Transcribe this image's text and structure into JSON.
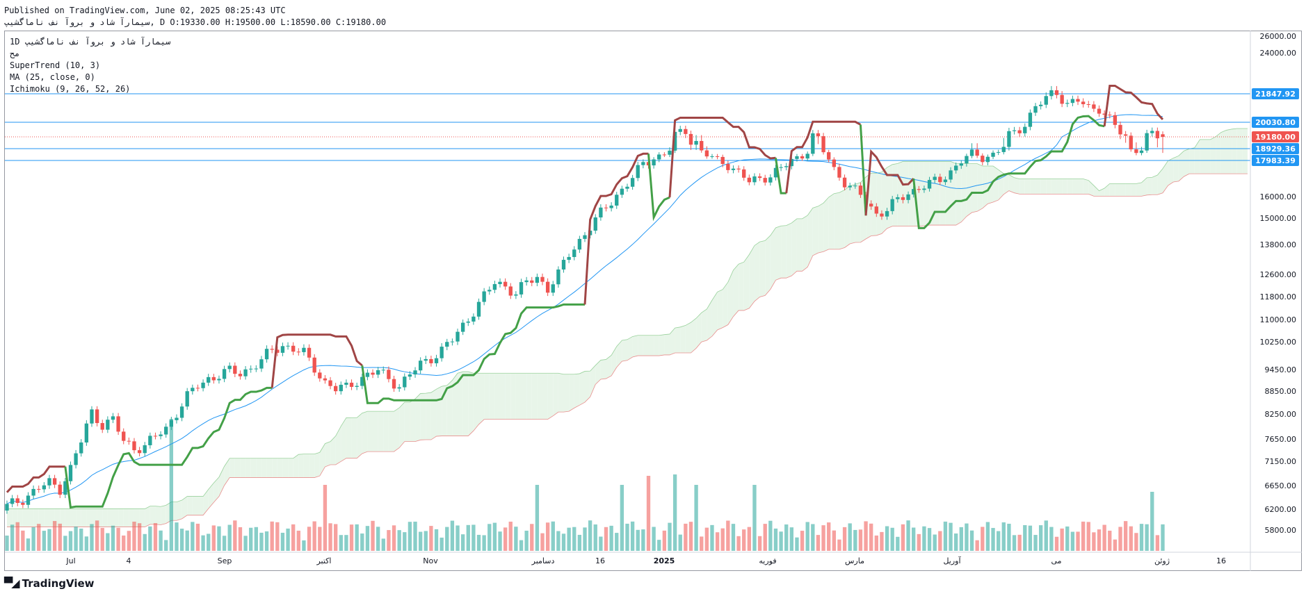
{
  "header": {
    "published": "Published on TradingView.com, June 02, 2025 08:25:43 UTC",
    "ticker": "سیمارآ شاد و بروآ نف ناماگشیپ, D O:19330.00 H:19500.00 L:18590.00 C:19180.00"
  },
  "legend": {
    "line1": "1D  سیمارآ شاد و بروآ نف ناماگشیپ",
    "line2": "مح",
    "supertrend": "SuperTrend (10, 3)",
    "ma": "MA (25, close, 0)",
    "ichimoku": "Ichimoku (9, 26, 52, 26)"
  },
  "footer": {
    "logo_icon": "tradingview-logo-icon",
    "brand": "TradingView"
  },
  "colors": {
    "up": "#26a69a",
    "down": "#ef5350",
    "supertrend_up": "#43a047",
    "supertrend_down": "#a04545",
    "ma": "#2196f3",
    "hline": "#2196f3",
    "cloud_bull": "#e8f5e9",
    "cloud_bear": "#fde8e8"
  },
  "chart_data": {
    "type": "candlestick",
    "title": "",
    "interval": "1D",
    "y_ticks": [
      26000,
      24000,
      21847.92,
      20030.8,
      19180,
      18929.36,
      17983.39,
      16000,
      15000,
      13800,
      12600,
      11800,
      11000,
      10250,
      9450,
      8850,
      8250,
      7650,
      7150,
      6650,
      6200,
      5800
    ],
    "y_tick_labels": [
      "26000.00",
      "24000.00",
      "21847.92",
      "20030.80",
      "19180.00",
      "18929.36",
      "17983.39",
      "16000.00",
      "15000.00",
      "13800.00",
      "12600.00",
      "11800.00",
      "11000.00",
      "10250.00",
      "9450.00",
      "8850.00",
      "8250.00",
      "7650.00",
      "7150.00",
      "6650.00",
      "6200.00",
      "5800.00"
    ],
    "x_tick_labels": [
      "Jul",
      "4",
      "Sep",
      "اکتبر",
      "Nov",
      "دسامبر",
      "16",
      "2025",
      "فوریه",
      "مارس",
      "آوریل",
      "می",
      "ژوئن",
      "16"
    ],
    "horizontal_lines": [
      21847.92,
      20030.8,
      18929.36,
      17983.39
    ],
    "last_price": 19180.0,
    "last_candle": {
      "open": 19330.0,
      "high": 19500.0,
      "low": 18590.0,
      "close": 19180.0
    },
    "supertrend": {
      "length": 10,
      "factor": 3
    },
    "ma": {
      "length": 25,
      "source": "close"
    },
    "ichimoku": {
      "conversion": 9,
      "base": 26,
      "lagging": 52,
      "displacement": 26
    },
    "close_path": [
      [
        0,
        6250
      ],
      [
        3,
        6400
      ],
      [
        6,
        6600
      ],
      [
        8,
        6700
      ],
      [
        10,
        6600
      ],
      [
        12,
        7000
      ],
      [
        14,
        7600
      ],
      [
        16,
        8300
      ],
      [
        18,
        8000
      ],
      [
        20,
        8100
      ],
      [
        22,
        7600
      ],
      [
        24,
        7450
      ],
      [
        26,
        7500
      ],
      [
        28,
        7700
      ],
      [
        30,
        7900
      ],
      [
        32,
        8300
      ],
      [
        34,
        8700
      ],
      [
        36,
        9000
      ],
      [
        38,
        9200
      ],
      [
        40,
        9300
      ],
      [
        42,
        9400
      ],
      [
        44,
        9350
      ],
      [
        46,
        9500
      ],
      [
        48,
        9700
      ],
      [
        50,
        10000
      ],
      [
        52,
        10150
      ],
      [
        54,
        10050
      ],
      [
        56,
        9900
      ],
      [
        58,
        9500
      ],
      [
        60,
        9100
      ],
      [
        62,
        8900
      ],
      [
        64,
        8950
      ],
      [
        66,
        9150
      ],
      [
        68,
        9300
      ],
      [
        70,
        9400
      ],
      [
        72,
        9200
      ],
      [
        74,
        9000
      ],
      [
        76,
        9300
      ],
      [
        78,
        9600
      ],
      [
        80,
        9800
      ],
      [
        82,
        10000
      ],
      [
        84,
        10300
      ],
      [
        86,
        10800
      ],
      [
        88,
        11300
      ],
      [
        90,
        11800
      ],
      [
        92,
        12300
      ],
      [
        94,
        12200
      ],
      [
        96,
        11900
      ],
      [
        98,
        12300
      ],
      [
        100,
        12500
      ],
      [
        102,
        12100
      ],
      [
        104,
        12600
      ],
      [
        106,
        13400
      ],
      [
        108,
        14000
      ],
      [
        110,
        14600
      ],
      [
        112,
        15200
      ],
      [
        114,
        15800
      ],
      [
        116,
        16400
      ],
      [
        118,
        17000
      ],
      [
        120,
        17800
      ],
      [
        122,
        18200
      ],
      [
        124,
        18500
      ],
      [
        126,
        19200
      ],
      [
        128,
        19600
      ],
      [
        130,
        19000
      ],
      [
        132,
        18400
      ],
      [
        134,
        18000
      ],
      [
        136,
        17800
      ],
      [
        138,
        17300
      ],
      [
        140,
        16800
      ],
      [
        142,
        17000
      ],
      [
        144,
        17200
      ],
      [
        146,
        17500
      ],
      [
        148,
        18000
      ],
      [
        150,
        18400
      ],
      [
        152,
        19200
      ],
      [
        154,
        18700
      ],
      [
        156,
        17500
      ],
      [
        158,
        16800
      ],
      [
        160,
        16300
      ],
      [
        162,
        15800
      ],
      [
        164,
        15200
      ],
      [
        166,
        15400
      ],
      [
        168,
        15800
      ],
      [
        170,
        16200
      ],
      [
        172,
        16500
      ],
      [
        174,
        16700
      ],
      [
        176,
        16900
      ],
      [
        178,
        17400
      ],
      [
        180,
        18000
      ],
      [
        182,
        18500
      ],
      [
        184,
        18200
      ],
      [
        186,
        18500
      ],
      [
        188,
        19000
      ],
      [
        190,
        19400
      ],
      [
        192,
        20000
      ],
      [
        194,
        21000
      ],
      [
        196,
        21500
      ],
      [
        198,
        22000
      ],
      [
        200,
        21200
      ],
      [
        202,
        21400
      ],
      [
        204,
        20900
      ],
      [
        206,
        21000
      ],
      [
        208,
        20200
      ],
      [
        210,
        19400
      ],
      [
        212,
        18800
      ],
      [
        214,
        19000
      ],
      [
        216,
        19300
      ],
      [
        218,
        19180
      ]
    ]
  }
}
